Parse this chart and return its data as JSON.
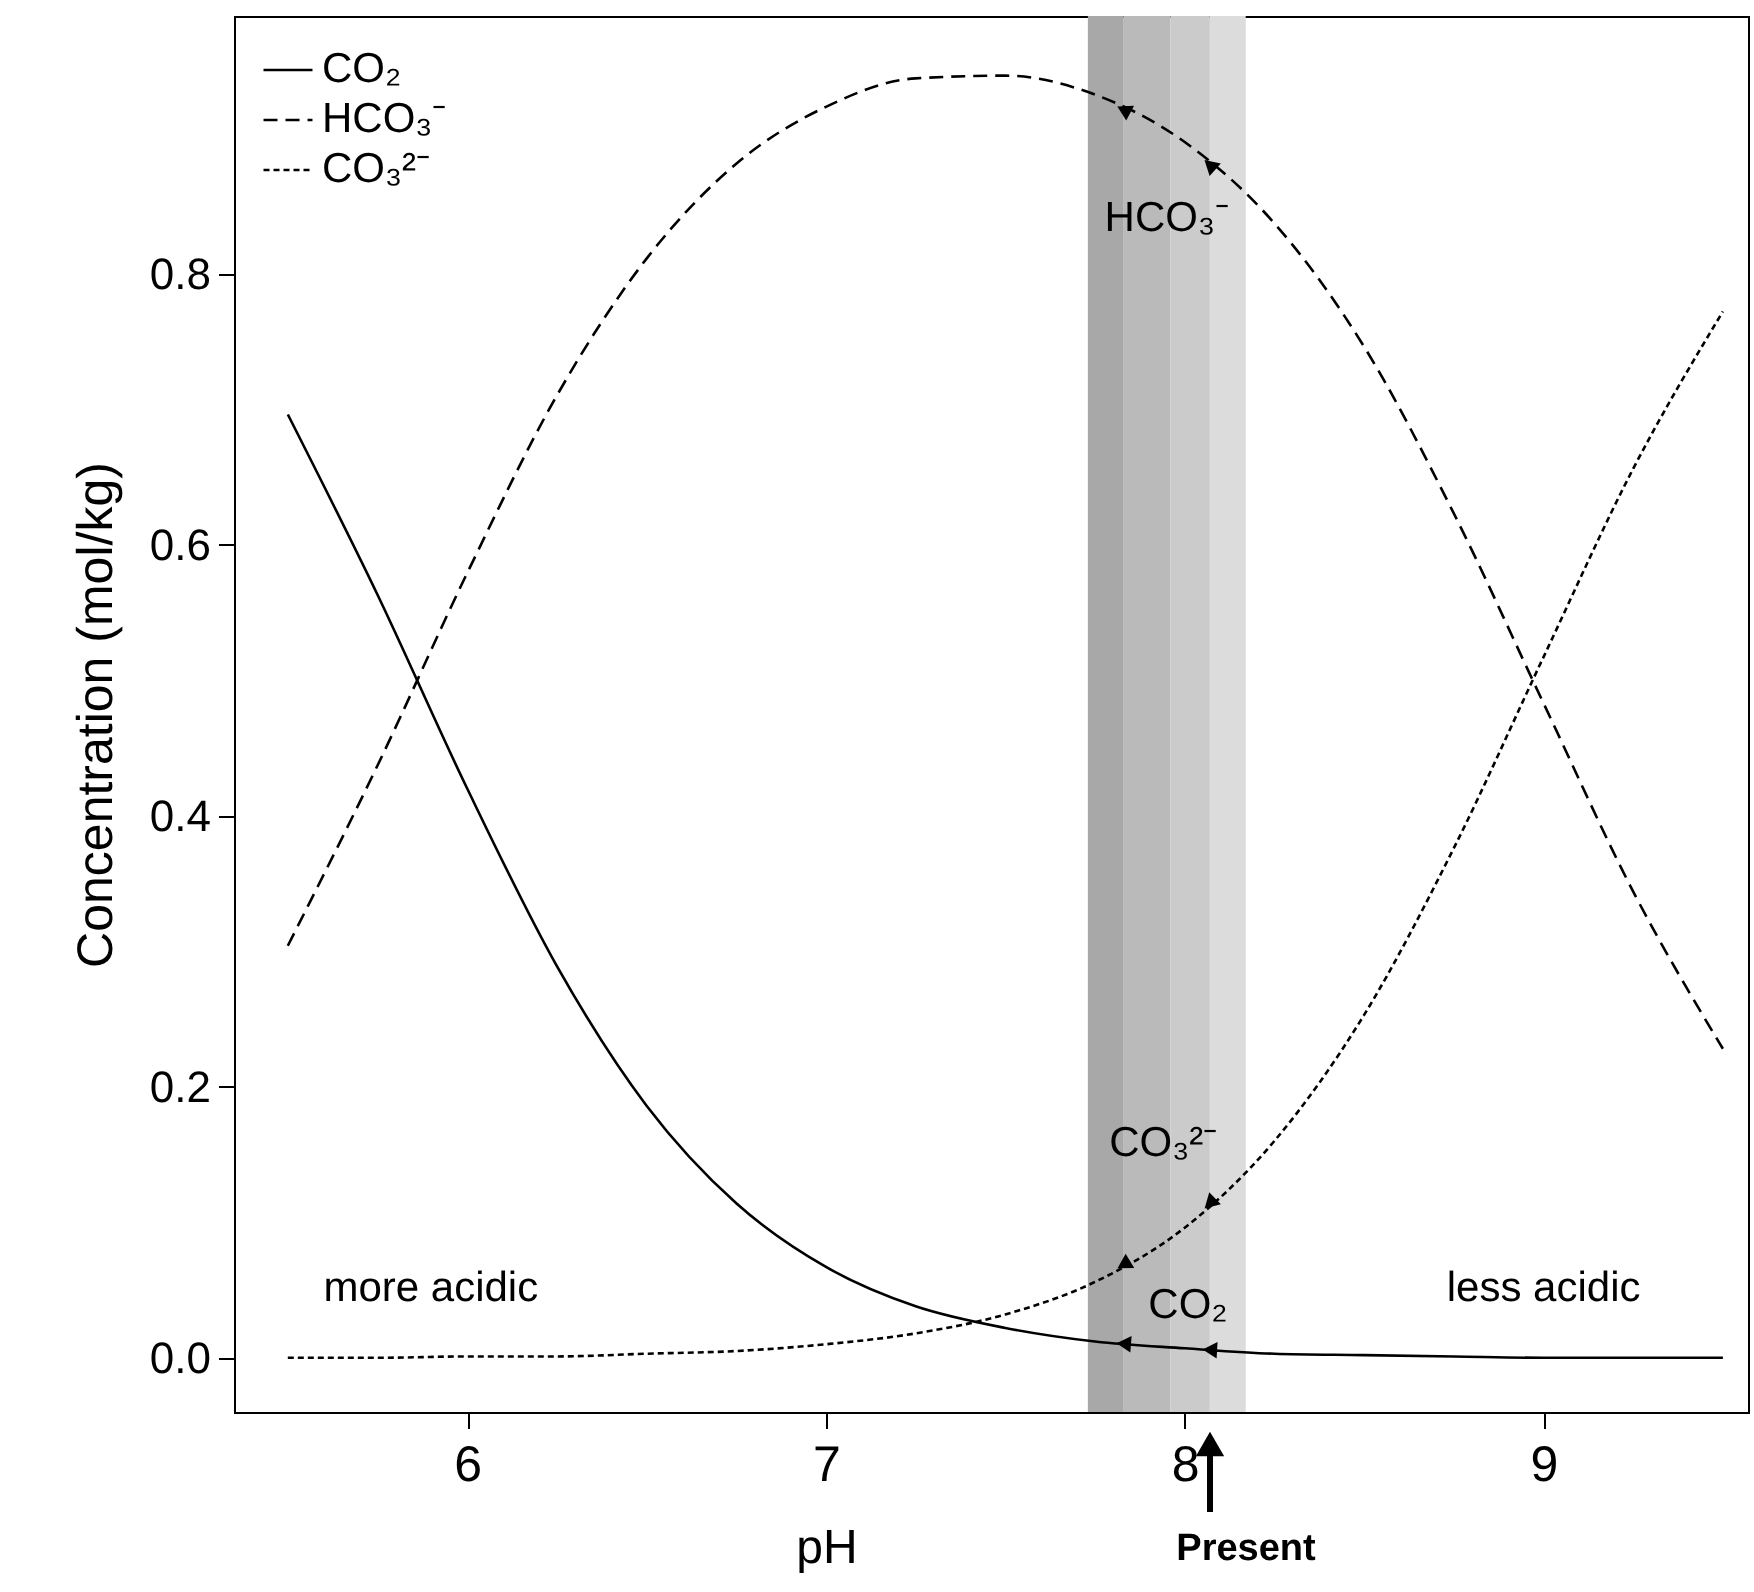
{
  "chart_data": {
    "type": "line",
    "xlabel": "pH",
    "ylabel": "Concentration (mol/kg)",
    "x": [
      5.5,
      5.75,
      6,
      6.25,
      6.5,
      6.75,
      7,
      7.25,
      7.5,
      7.75,
      8,
      8.25,
      8.5,
      8.75,
      9,
      9.25,
      9.5
    ],
    "series": [
      {
        "name": "CO₂",
        "color": "#000000",
        "line_style": "solid",
        "values": [
          0.696,
          0.563,
          0.42,
          0.289,
          0.186,
          0.114,
          0.067,
          0.038,
          0.022,
          0.012,
          0.007,
          0.003,
          0.002,
          0.001,
          0,
          0,
          0
        ]
      },
      {
        "name": "HCO₃⁻",
        "color": "#000000",
        "line_style": "dashed",
        "values": [
          0.304,
          0.437,
          0.579,
          0.71,
          0.811,
          0.881,
          0.923,
          0.944,
          0.946,
          0.932,
          0.897,
          0.837,
          0.746,
          0.623,
          0.483,
          0.344,
          0.228
        ]
      },
      {
        "name": "CO₃²⁻",
        "color": "#000000",
        "line_style": "dotted",
        "values": [
          0,
          0,
          0.001,
          0.001,
          0.003,
          0.005,
          0.01,
          0.018,
          0.032,
          0.056,
          0.096,
          0.16,
          0.253,
          0.376,
          0.517,
          0.656,
          0.772
        ]
      }
    ],
    "xlim": [
      5.35,
      9.57
    ],
    "ylim": [
      -0.04,
      0.99
    ],
    "xticks": [
      6,
      7,
      8,
      9
    ],
    "yticks": [
      {
        "value": 0,
        "label": "0.0"
      },
      {
        "value": 0.2,
        "label": "0.2"
      },
      {
        "value": 0.4,
        "label": "0.4"
      },
      {
        "value": 0.6,
        "label": "0.6"
      },
      {
        "value": 0.8,
        "label": "0.8"
      }
    ],
    "bands": [
      {
        "axis": "x",
        "from": 7.73,
        "to": 7.83,
        "color": "#a8a8a8"
      },
      {
        "axis": "x",
        "from": 7.83,
        "to": 7.96,
        "color": "#bababa"
      },
      {
        "axis": "x",
        "from": 7.96,
        "to": 8.07,
        "color": "#cbcbcb"
      },
      {
        "axis": "x",
        "from": 8.07,
        "to": 8.17,
        "color": "#dcdcdc"
      }
    ],
    "annotations": [
      "more acidic",
      "less acidic",
      {
        "text": "HCO₃⁻",
        "x": 7.95,
        "y": 0.84
      },
      {
        "text": "CO₃²⁻",
        "x": 7.94,
        "y": 0.158
      },
      "CO₂",
      "Present"
    ],
    "legend": "top left",
    "grid": false
  }
}
